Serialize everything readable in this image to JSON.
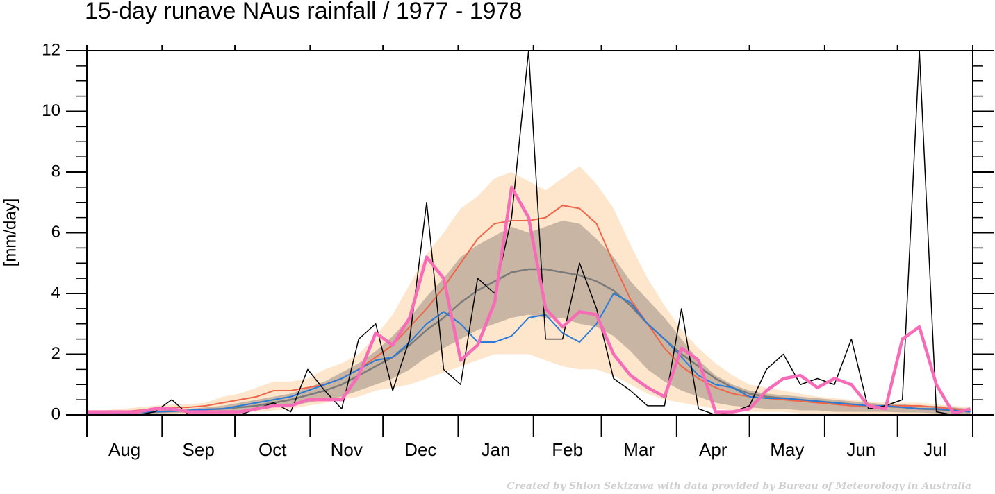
{
  "chart_data": {
    "type": "line",
    "title": "15-day runave NAus rainfall  /  1977 - 1978",
    "ylabel": "[mm/day]",
    "credit": "Created by Shion Sekizawa with data provided by Bureau of Meteorology in Australia",
    "categories": [
      "Aug",
      "Sep",
      "Oct",
      "Nov",
      "Dec",
      "Jan",
      "Feb",
      "Mar",
      "Apr",
      "May",
      "Jun",
      "Jul"
    ],
    "xlim": [
      0,
      365
    ],
    "xticks": [
      0,
      31,
      61,
      92,
      122,
      153,
      184,
      212,
      243,
      273,
      304,
      334,
      365
    ],
    "ylim": [
      0,
      12
    ],
    "yticks": [
      0,
      2,
      4,
      6,
      8,
      10,
      12
    ],
    "yminorticks": [
      0.5,
      1,
      1.5,
      2.5,
      3,
      3.5,
      4.5,
      5,
      5.5,
      6.5,
      7,
      7.5,
      8.5,
      9,
      9.5,
      10.5,
      11,
      11.5
    ],
    "x": [
      0,
      7,
      14,
      21,
      28,
      35,
      42,
      49,
      56,
      63,
      70,
      77,
      84,
      91,
      98,
      105,
      112,
      119,
      126,
      133,
      140,
      147,
      154,
      161,
      168,
      175,
      182,
      189,
      196,
      203,
      210,
      217,
      224,
      231,
      238,
      245,
      252,
      259,
      266,
      273,
      280,
      287,
      294,
      301,
      308,
      315,
      322,
      329,
      336,
      343,
      350,
      357,
      364
    ],
    "bands": [
      {
        "color": "#fde6cc",
        "upper": [
          0.15,
          0.15,
          0.2,
          0.25,
          0.3,
          0.35,
          0.35,
          0.4,
          0.6,
          0.7,
          0.9,
          1.1,
          1.1,
          1.2,
          1.5,
          1.7,
          2.0,
          2.6,
          3.3,
          4.3,
          5.3,
          6.0,
          6.8,
          7.2,
          7.8,
          8.0,
          7.7,
          7.4,
          7.8,
          8.2,
          7.6,
          6.8,
          5.6,
          4.5,
          3.6,
          2.8,
          2.2,
          1.7,
          1.3,
          1.0,
          0.9,
          0.8,
          0.7,
          0.6,
          0.55,
          0.5,
          0.45,
          0.4,
          0.4,
          0.4,
          0.35,
          0.3,
          0.25
        ],
        "lower": [
          0,
          0,
          0,
          0,
          0,
          0,
          0,
          0,
          0.05,
          0.1,
          0.1,
          0.15,
          0.2,
          0.3,
          0.4,
          0.5,
          0.6,
          0.8,
          0.9,
          1.0,
          1.2,
          1.4,
          1.6,
          1.8,
          2.0,
          2.0,
          2.0,
          1.8,
          1.6,
          1.5,
          1.5,
          1.3,
          1.0,
          0.7,
          0.5,
          0.4,
          0.3,
          0.2,
          0.15,
          0.1,
          0.1,
          0.1,
          0.05,
          0.05,
          0.05,
          0,
          0,
          0,
          0,
          0,
          0,
          0,
          0
        ]
      },
      {
        "color": "#c8b5a3",
        "upper": [
          0.1,
          0.1,
          0.1,
          0.12,
          0.15,
          0.2,
          0.2,
          0.25,
          0.3,
          0.4,
          0.5,
          0.6,
          0.7,
          0.9,
          1.1,
          1.4,
          1.7,
          2.1,
          2.6,
          3.2,
          3.9,
          4.5,
          5.2,
          5.6,
          5.9,
          6.2,
          6.0,
          6.2,
          6.4,
          6.3,
          5.8,
          5.2,
          4.4,
          3.8,
          3.2,
          2.5,
          1.8,
          1.3,
          1.0,
          0.8,
          0.7,
          0.65,
          0.6,
          0.55,
          0.5,
          0.45,
          0.4,
          0.35,
          0.35,
          0.3,
          0.3,
          0.25,
          0.2
        ],
        "lower": [
          0,
          0,
          0.02,
          0.03,
          0.05,
          0.06,
          0.08,
          0.1,
          0.12,
          0.15,
          0.2,
          0.25,
          0.3,
          0.4,
          0.5,
          0.6,
          0.8,
          1.0,
          1.2,
          1.5,
          1.9,
          2.2,
          2.5,
          2.8,
          3.0,
          3.2,
          3.3,
          3.2,
          3.2,
          3.0,
          2.9,
          2.6,
          2.1,
          1.5,
          1.1,
          0.8,
          0.6,
          0.4,
          0.3,
          0.25,
          0.2,
          0.2,
          0.15,
          0.15,
          0.1,
          0.1,
          0.1,
          0.1,
          0.08,
          0.08,
          0.05,
          0.05,
          0.03
        ]
      }
    ],
    "series": [
      {
        "color": "#7a7a7a",
        "width": 2.5,
        "values": [
          0.05,
          0.05,
          0.06,
          0.08,
          0.1,
          0.12,
          0.15,
          0.18,
          0.2,
          0.25,
          0.3,
          0.4,
          0.5,
          0.65,
          0.8,
          1.0,
          1.3,
          1.6,
          1.9,
          2.3,
          2.8,
          3.2,
          3.7,
          4.1,
          4.4,
          4.7,
          4.8,
          4.8,
          4.7,
          4.6,
          4.4,
          4.1,
          3.6,
          3.0,
          2.5,
          2.0,
          1.6,
          1.2,
          0.9,
          0.7,
          0.6,
          0.55,
          0.5,
          0.45,
          0.4,
          0.35,
          0.3,
          0.28,
          0.25,
          0.2,
          0.18,
          0.15,
          0.1
        ]
      },
      {
        "color": "#f0654a",
        "width": 2,
        "values": [
          0.1,
          0.1,
          0.1,
          0.15,
          0.2,
          0.25,
          0.25,
          0.3,
          0.4,
          0.5,
          0.6,
          0.8,
          0.8,
          0.9,
          1.0,
          1.2,
          1.5,
          1.9,
          2.3,
          2.9,
          3.5,
          4.2,
          5.0,
          5.8,
          6.3,
          6.4,
          6.4,
          6.5,
          6.9,
          6.8,
          6.3,
          5.0,
          3.8,
          3.0,
          2.2,
          1.6,
          1.2,
          0.9,
          0.7,
          0.6,
          0.55,
          0.5,
          0.45,
          0.4,
          0.35,
          0.3,
          0.3,
          0.3,
          0.3,
          0.3,
          0.25,
          0.2,
          0.15
        ]
      },
      {
        "color": "#2a7bd8",
        "width": 2,
        "values": [
          0.05,
          0.05,
          0.05,
          0.08,
          0.1,
          0.12,
          0.15,
          0.18,
          0.2,
          0.3,
          0.4,
          0.5,
          0.6,
          0.8,
          1.0,
          1.2,
          1.5,
          1.8,
          1.9,
          2.4,
          3.0,
          3.4,
          3.0,
          2.4,
          2.4,
          2.6,
          3.2,
          3.3,
          2.7,
          2.4,
          3.0,
          4.0,
          3.7,
          3.0,
          2.5,
          1.9,
          1.3,
          1.0,
          0.9,
          0.6,
          0.55,
          0.55,
          0.5,
          0.45,
          0.4,
          0.35,
          0.3,
          0.3,
          0.25,
          0.2,
          0.2,
          0.15,
          0.1
        ]
      },
      {
        "color": "#000000",
        "width": 1.5,
        "values": [
          0,
          0,
          0,
          0,
          0.1,
          0.5,
          0,
          0,
          0,
          0,
          0.2,
          0.4,
          0.1,
          1.5,
          0.8,
          0.2,
          2.5,
          3.0,
          0.8,
          2.5,
          7.0,
          1.5,
          1.0,
          4.5,
          4.0,
          6.5,
          12,
          2.5,
          2.5,
          5.0,
          3.5,
          1.2,
          0.8,
          0.3,
          0.3,
          3.5,
          0.2,
          0,
          0.1,
          0.3,
          1.5,
          2.0,
          1.0,
          1.2,
          1.0,
          2.5,
          0.2,
          0.3,
          0.5,
          12,
          0.1,
          0,
          0
        ]
      },
      {
        "color": "#f76cb6",
        "width": 4.5,
        "values": [
          0.1,
          0.1,
          0.1,
          0.1,
          0.2,
          0.2,
          0.1,
          0.1,
          0.1,
          0.1,
          0.2,
          0.3,
          0.3,
          0.5,
          0.5,
          0.5,
          1.3,
          2.7,
          2.3,
          3.2,
          5.2,
          4.5,
          1.8,
          2.3,
          3.7,
          7.5,
          6.5,
          3.5,
          2.9,
          3.4,
          3.3,
          2.0,
          1.3,
          0.9,
          0.6,
          2.2,
          1.8,
          0.1,
          0.1,
          0.2,
          0.8,
          1.2,
          1.3,
          0.9,
          1.2,
          1.0,
          0.3,
          0.2,
          2.5,
          2.9,
          1.0,
          0.05,
          0.2
        ]
      }
    ]
  }
}
